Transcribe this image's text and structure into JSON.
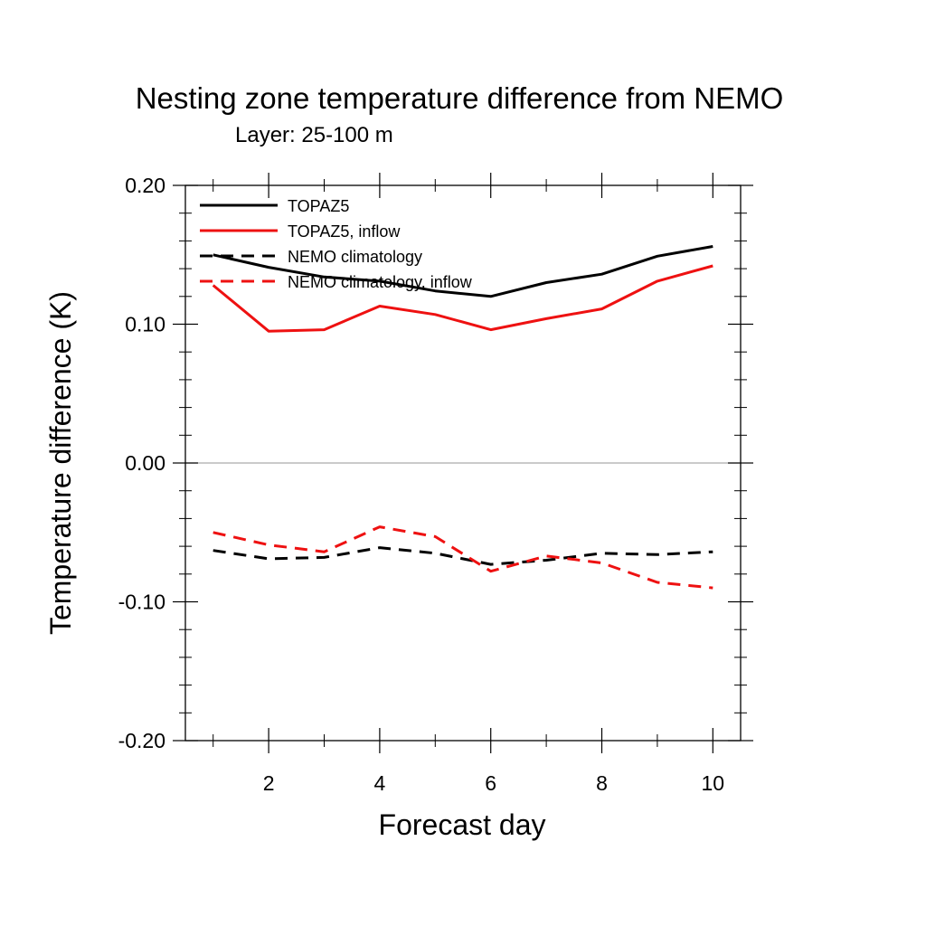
{
  "chart_data": {
    "type": "line",
    "title": "Nesting zone temperature difference from NEMO",
    "subtitle": "Layer: 25-100 m",
    "xlabel": "Forecast day",
    "ylabel": "Temperature difference (K)",
    "xlim": [
      0.5,
      10.5
    ],
    "ylim": [
      -0.2,
      0.2
    ],
    "xticks": [
      2,
      4,
      6,
      8,
      10
    ],
    "xtick_labels": [
      "2",
      "4",
      "6",
      "8",
      "10"
    ],
    "yticks": [
      -0.2,
      -0.1,
      0.0,
      0.1,
      0.2
    ],
    "ytick_labels": [
      "-0.20",
      "-0.10",
      "0.00",
      "0.10",
      "0.20"
    ],
    "zero_line": true,
    "legend_position": "top-left",
    "x": [
      1,
      2,
      3,
      4,
      5,
      6,
      7,
      8,
      9,
      10
    ],
    "series": [
      {
        "name": "TOPAZ5",
        "color": "#000000",
        "dash": "solid",
        "values": [
          0.15,
          0.141,
          0.134,
          0.131,
          0.124,
          0.12,
          0.13,
          0.136,
          0.149,
          0.156
        ]
      },
      {
        "name": "TOPAZ5, inflow",
        "color": "#ee1111",
        "dash": "solid",
        "values": [
          0.128,
          0.095,
          0.096,
          0.113,
          0.107,
          0.096,
          0.104,
          0.111,
          0.131,
          0.142
        ]
      },
      {
        "name": "NEMO climatology",
        "color": "#000000",
        "dash": "dashed",
        "values": [
          -0.063,
          -0.069,
          -0.068,
          -0.061,
          -0.065,
          -0.073,
          -0.07,
          -0.065,
          -0.066,
          -0.064
        ]
      },
      {
        "name": "NEMO climatology, inflow",
        "color": "#ee1111",
        "dash": "dashed",
        "values": [
          -0.05,
          -0.059,
          -0.064,
          -0.046,
          -0.053,
          -0.078,
          -0.067,
          -0.072,
          -0.086,
          -0.09
        ]
      }
    ]
  }
}
